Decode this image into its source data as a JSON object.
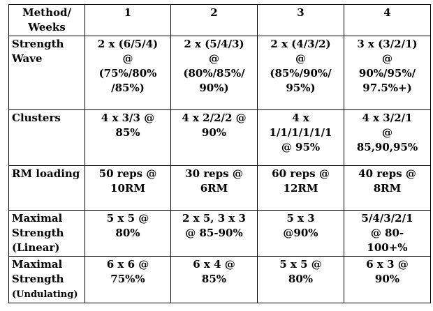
{
  "header": {
    "method_weeks": [
      "Method/",
      "Weeks"
    ],
    "weeks": [
      "1",
      "2",
      "3",
      "4"
    ]
  },
  "rows": [
    {
      "method": [
        "Strength",
        "Wave"
      ],
      "cells": [
        [
          "2 x (6/5/4)",
          "@",
          "(75%/80%",
          "/85%)"
        ],
        [
          "2 x (5/4/3)",
          "@",
          "(80%/85%/",
          "90%)"
        ],
        [
          "2 x (4/3/2)",
          "@",
          "(85%/90%/",
          "95%)"
        ],
        [
          "3 x (3/2/1)",
          "@",
          "90%/95%/",
          "97.5%+)"
        ]
      ]
    },
    {
      "method": [
        "Clusters"
      ],
      "cells": [
        [
          "4 x 3/3 @",
          "85%"
        ],
        [
          "4 x 2/2/2 @",
          "90%"
        ],
        [
          "4 x",
          "1/1/1/1/1/1",
          "@ 95%"
        ],
        [
          "4 x 3/2/1",
          "@",
          "85,90,95%"
        ]
      ]
    },
    {
      "method": [
        "RM loading"
      ],
      "cells": [
        [
          "50 reps @",
          "10RM"
        ],
        [
          "30 reps @",
          "6RM"
        ],
        [
          "60 reps @",
          "12RM"
        ],
        [
          "40 reps @",
          "8RM"
        ]
      ]
    },
    {
      "method": [
        "Maximal",
        "Strength",
        "(Linear)"
      ],
      "cells": [
        [
          "5 x 5 @",
          "80%"
        ],
        [
          "2 x 5, 3 x 3",
          "@ 85-90%"
        ],
        [
          "5 x 3",
          "@90%"
        ],
        [
          "5/4/3/2/1",
          "@ 80-",
          "100+%"
        ]
      ]
    },
    {
      "method": [
        "Maximal",
        "Strength",
        "(Undulating)"
      ],
      "cells": [
        [
          "6 x 6 @",
          "75%%"
        ],
        [
          "6 x 4 @",
          "85%"
        ],
        [
          "5 x 5 @",
          "80%"
        ],
        [
          "6 x 3 @",
          "90%"
        ]
      ]
    }
  ]
}
